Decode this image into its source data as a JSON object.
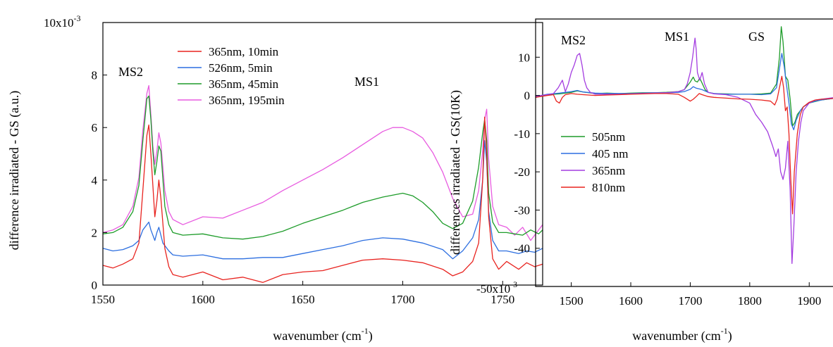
{
  "chart_data": [
    {
      "type": "line",
      "xlabel": "wavenumber (cm",
      "xlabel_sup": "-1",
      "xlabel_end": ")",
      "ylabel": "difference irradiated - GS (a.u.)",
      "xlim": [
        1550,
        1770
      ],
      "ylim": [
        0,
        10
      ],
      "y_multiplier_label": "10x10",
      "y_multiplier_sup": "-3",
      "x_ticks": [
        1550,
        1600,
        1650,
        1700,
        1750
      ],
      "x_tick_labels": [
        "1550",
        "1600",
        "1650",
        "1700",
        "1750"
      ],
      "y_ticks": [
        0,
        2,
        4,
        6,
        8
      ],
      "y_tick_labels": [
        "0",
        "2",
        "4",
        "6",
        "8"
      ],
      "grid": false,
      "legend_position": "top-center",
      "annotations": [
        {
          "text": "MS2",
          "x": 1567,
          "y": 8.0
        },
        {
          "text": "MS1",
          "x": 1736,
          "y": 7.6
        }
      ],
      "series": [
        {
          "name": "365nm, 10min",
          "color": "#e8231f",
          "x": [
            1550,
            1555,
            1560,
            1565,
            1568,
            1570,
            1572,
            1573,
            1574,
            1576,
            1577,
            1578,
            1579,
            1581,
            1583,
            1585,
            1590,
            1600,
            1610,
            1620,
            1630,
            1640,
            1650,
            1660,
            1670,
            1680,
            1690,
            1700,
            1710,
            1720,
            1725,
            1730,
            1735,
            1738,
            1740,
            1741,
            1742,
            1743,
            1745,
            1748,
            1752,
            1758,
            1762,
            1766,
            1770
          ],
          "y": [
            0.75,
            0.65,
            0.8,
            1.0,
            1.6,
            3.6,
            5.7,
            6.1,
            5.0,
            2.6,
            3.2,
            4.0,
            3.3,
            1.4,
            0.7,
            0.4,
            0.3,
            0.5,
            0.2,
            0.3,
            0.1,
            0.4,
            0.5,
            0.55,
            0.75,
            0.95,
            1.0,
            0.95,
            0.85,
            0.6,
            0.35,
            0.5,
            0.9,
            1.6,
            4.0,
            6.4,
            5.0,
            2.6,
            1.0,
            0.6,
            0.9,
            0.6,
            0.85,
            0.7,
            0.8
          ]
        },
        {
          "name": "526nm, 5min",
          "color": "#2d6fe0",
          "x": [
            1550,
            1555,
            1560,
            1565,
            1568,
            1570,
            1572,
            1573,
            1574,
            1576,
            1577,
            1578,
            1580,
            1583,
            1585,
            1590,
            1600,
            1610,
            1620,
            1630,
            1640,
            1650,
            1660,
            1670,
            1680,
            1690,
            1700,
            1710,
            1720,
            1725,
            1730,
            1735,
            1738,
            1740,
            1741,
            1742,
            1743,
            1745,
            1748,
            1752,
            1758,
            1762,
            1766,
            1770
          ],
          "y": [
            1.4,
            1.3,
            1.35,
            1.5,
            1.7,
            2.1,
            2.3,
            2.4,
            2.1,
            1.7,
            2.0,
            2.2,
            1.6,
            1.3,
            1.15,
            1.1,
            1.15,
            1.0,
            1.0,
            1.05,
            1.05,
            1.2,
            1.35,
            1.5,
            1.7,
            1.8,
            1.75,
            1.6,
            1.35,
            1.0,
            1.3,
            1.8,
            2.5,
            4.0,
            5.5,
            4.7,
            2.8,
            1.7,
            1.3,
            1.3,
            1.2,
            1.3,
            1.25,
            1.4
          ]
        },
        {
          "name": "365nm, 45min",
          "color": "#1e9c2a",
          "x": [
            1550,
            1555,
            1560,
            1565,
            1568,
            1570,
            1572,
            1573,
            1574,
            1575,
            1576,
            1577,
            1578,
            1579,
            1581,
            1583,
            1585,
            1590,
            1600,
            1610,
            1620,
            1630,
            1640,
            1650,
            1660,
            1670,
            1680,
            1690,
            1700,
            1705,
            1710,
            1715,
            1720,
            1725,
            1730,
            1735,
            1738,
            1740,
            1741,
            1742,
            1743,
            1745,
            1748,
            1752,
            1756,
            1760,
            1764,
            1768,
            1770
          ],
          "y": [
            1.95,
            2.0,
            2.2,
            2.8,
            3.8,
            5.5,
            7.1,
            7.2,
            6.3,
            5.1,
            4.2,
            4.7,
            5.3,
            5.1,
            3.0,
            2.3,
            2.0,
            1.9,
            1.95,
            1.8,
            1.75,
            1.85,
            2.05,
            2.35,
            2.6,
            2.85,
            3.15,
            3.35,
            3.5,
            3.4,
            3.15,
            2.8,
            2.35,
            2.15,
            2.35,
            3.2,
            4.5,
            5.8,
            6.3,
            5.5,
            3.5,
            2.4,
            2.0,
            2.0,
            1.95,
            1.9,
            2.1,
            1.95,
            2.1
          ]
        },
        {
          "name": "365nm, 195min",
          "color": "#e85ce0",
          "x": [
            1550,
            1555,
            1560,
            1565,
            1568,
            1570,
            1572,
            1573,
            1574,
            1575,
            1576,
            1577,
            1578,
            1579,
            1581,
            1583,
            1585,
            1590,
            1600,
            1610,
            1620,
            1630,
            1640,
            1650,
            1660,
            1670,
            1680,
            1690,
            1695,
            1700,
            1705,
            1710,
            1715,
            1720,
            1725,
            1730,
            1735,
            1738,
            1740,
            1741,
            1742,
            1743,
            1745,
            1748,
            1752,
            1756,
            1760,
            1764,
            1768,
            1770
          ],
          "y": [
            2.0,
            2.1,
            2.3,
            3.0,
            4.1,
            5.9,
            7.3,
            7.6,
            6.5,
            5.3,
            4.6,
            5.1,
            5.8,
            5.4,
            3.6,
            2.8,
            2.5,
            2.3,
            2.6,
            2.55,
            2.85,
            3.15,
            3.6,
            4.0,
            4.4,
            4.85,
            5.35,
            5.85,
            6.0,
            6.0,
            5.85,
            5.6,
            5.05,
            4.3,
            3.3,
            2.6,
            2.7,
            3.6,
            5.1,
            6.3,
            6.7,
            4.8,
            3.0,
            2.3,
            2.2,
            1.9,
            2.2,
            1.7,
            2.1,
            2.3
          ]
        }
      ]
    },
    {
      "type": "line",
      "xlabel": "wavenumber (cm",
      "xlabel_sup": "-1",
      "xlabel_end": ")",
      "ylabel": "differences irradiated - GS(10K)",
      "xlim": [
        1440,
        1940
      ],
      "ylim": [
        -50,
        20
      ],
      "y_multiplier_label": "-50x10",
      "y_multiplier_sup": "-3",
      "x_ticks": [
        1500,
        1600,
        1700,
        1800,
        1900
      ],
      "x_tick_labels": [
        "1500",
        "1600",
        "1700",
        "1800",
        "1900"
      ],
      "y_ticks": [
        10,
        0,
        -10,
        -20,
        -30,
        -40
      ],
      "y_tick_labels": [
        "10",
        "0",
        "-10",
        "-20",
        "-30",
        "-40"
      ],
      "grid": false,
      "legend_position": "middle-left",
      "annotations": [
        {
          "text": "MS2",
          "x": 1510,
          "y": 13.0
        },
        {
          "text": "MS1",
          "x": 1705,
          "y": 13.0
        },
        {
          "text": "GS",
          "x": 1838,
          "y": 13.0
        }
      ],
      "series": [
        {
          "name": "505nm",
          "color": "#1e9c2a",
          "x": [
            1440,
            1460,
            1480,
            1500,
            1510,
            1520,
            1540,
            1560,
            1580,
            1600,
            1620,
            1640,
            1660,
            1680,
            1690,
            1700,
            1705,
            1708,
            1712,
            1716,
            1720,
            1725,
            1730,
            1740,
            1760,
            1780,
            1800,
            1820,
            1835,
            1845,
            1850,
            1853,
            1856,
            1860,
            1864,
            1868,
            1872,
            1876,
            1880,
            1890,
            1900,
            1910,
            1920,
            1930,
            1940
          ],
          "y": [
            -0.5,
            0.2,
            0.4,
            0.8,
            1.2,
            0.9,
            0.5,
            0.6,
            0.5,
            0.6,
            0.7,
            0.7,
            0.8,
            1.0,
            1.5,
            3.5,
            4.8,
            3.8,
            3.5,
            4.5,
            3.2,
            1.5,
            0.8,
            0.5,
            0.4,
            0.3,
            0.3,
            0.4,
            0.6,
            3.0,
            10.0,
            18.0,
            14.0,
            5.0,
            4.0,
            -1.0,
            -8.0,
            -7.0,
            -5.0,
            -3.0,
            -2.0,
            -1.6,
            -1.2,
            -1.0,
            -0.8
          ]
        },
        {
          "name": "405 nm",
          "color": "#2d6fe0",
          "x": [
            1440,
            1460,
            1480,
            1500,
            1510,
            1520,
            1540,
            1560,
            1580,
            1600,
            1620,
            1640,
            1660,
            1680,
            1690,
            1700,
            1705,
            1710,
            1715,
            1720,
            1730,
            1740,
            1760,
            1780,
            1800,
            1820,
            1835,
            1845,
            1850,
            1854,
            1858,
            1862,
            1866,
            1870,
            1874,
            1878,
            1885,
            1890,
            1900,
            1910,
            1920,
            1930,
            1940
          ],
          "y": [
            -0.3,
            0.3,
            0.6,
            1.0,
            1.3,
            0.9,
            0.6,
            0.5,
            0.5,
            0.5,
            0.6,
            0.7,
            0.7,
            0.8,
            1.0,
            1.6,
            2.3,
            1.9,
            1.7,
            1.5,
            0.8,
            0.5,
            0.3,
            0.3,
            0.3,
            0.2,
            0.4,
            2.0,
            7.0,
            11.0,
            7.5,
            2.5,
            -2.0,
            -7.5,
            -9.0,
            -6.5,
            -4.0,
            -3.0,
            -2.0,
            -1.5,
            -1.2,
            -1.0,
            -0.8
          ]
        },
        {
          "name": "365nm",
          "color": "#a43de0",
          "x": [
            1440,
            1460,
            1470,
            1478,
            1485,
            1490,
            1495,
            1500,
            1505,
            1510,
            1514,
            1518,
            1522,
            1526,
            1532,
            1540,
            1560,
            1580,
            1600,
            1620,
            1640,
            1660,
            1680,
            1690,
            1695,
            1700,
            1704,
            1708,
            1710,
            1712,
            1716,
            1720,
            1724,
            1730,
            1740,
            1760,
            1780,
            1800,
            1810,
            1820,
            1830,
            1838,
            1844,
            1848,
            1852,
            1856,
            1860,
            1864,
            1868,
            1871,
            1874,
            1878,
            1882,
            1886,
            1890,
            1900,
            1910,
            1920,
            1930,
            1940
          ],
          "y": [
            -0.2,
            0.2,
            0.5,
            2.0,
            4.0,
            1.0,
            3.0,
            6.0,
            8.0,
            10.5,
            11.0,
            8.0,
            4.0,
            2.0,
            0.8,
            0.3,
            0.3,
            0.3,
            0.4,
            0.5,
            0.6,
            0.7,
            1.0,
            1.5,
            3.0,
            6.0,
            10.0,
            15.0,
            12.0,
            6.0,
            4.0,
            6.0,
            3.0,
            0.8,
            0.4,
            0.2,
            -0.5,
            -2.0,
            -5.0,
            -7.0,
            -9.5,
            -13.0,
            -16.0,
            -14.0,
            -20.0,
            -22.0,
            -19.0,
            -12.0,
            -25.0,
            -44.0,
            -35.0,
            -20.0,
            -12.0,
            -7.0,
            -4.0,
            -2.0,
            -1.2,
            -1.0,
            -0.8,
            -0.6
          ]
        },
        {
          "name": "810nm",
          "color": "#e8231f",
          "x": [
            1440,
            1460,
            1470,
            1475,
            1480,
            1485,
            1490,
            1500,
            1510,
            1520,
            1540,
            1560,
            1580,
            1600,
            1620,
            1640,
            1660,
            1680,
            1690,
            1700,
            1705,
            1710,
            1715,
            1720,
            1730,
            1740,
            1760,
            1780,
            1800,
            1820,
            1835,
            1842,
            1846,
            1850,
            1854,
            1857,
            1860,
            1863,
            1866,
            1869,
            1872,
            1875,
            1880,
            1885,
            1890,
            1900,
            1910,
            1920,
            1930,
            1940
          ],
          "y": [
            -0.5,
            0.0,
            0.2,
            -1.5,
            -2.0,
            -0.5,
            0.2,
            0.5,
            0.3,
            0.2,
            0.0,
            0.1,
            0.2,
            0.3,
            0.4,
            0.5,
            0.5,
            0.3,
            -0.5,
            -1.5,
            -1.0,
            -0.3,
            0.5,
            0.2,
            -0.3,
            -0.5,
            -0.7,
            -0.9,
            -1.0,
            -1.2,
            -1.5,
            -2.5,
            -1.0,
            2.0,
            5.0,
            2.0,
            -4.0,
            -3.0,
            -10.0,
            -22.0,
            -31.0,
            -20.0,
            -10.0,
            -5.0,
            -3.0,
            -1.8,
            -1.2,
            -1.0,
            -0.9,
            -0.8
          ]
        }
      ]
    }
  ]
}
